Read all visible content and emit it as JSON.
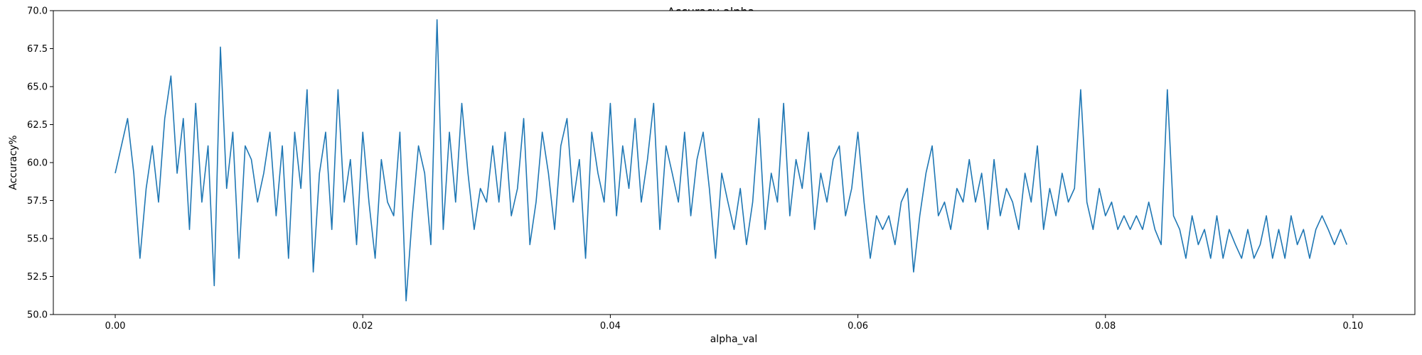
{
  "chart_data": {
    "type": "line",
    "title": "Accuracy-alpha",
    "xlabel": "alpha_val",
    "ylabel": "Accuracy%",
    "xlim": [
      -0.005,
      0.105
    ],
    "ylim": [
      50.0,
      70.0
    ],
    "x_ticks": [
      0.0,
      0.02,
      0.04,
      0.06,
      0.08,
      0.1
    ],
    "x_tick_labels": [
      "0.00",
      "0.02",
      "0.04",
      "0.06",
      "0.08",
      "0.10"
    ],
    "y_ticks": [
      50.0,
      52.5,
      55.0,
      57.5,
      60.0,
      62.5,
      65.0,
      67.5,
      70.0
    ],
    "y_tick_labels": [
      "50.0",
      "52.5",
      "55.0",
      "57.5",
      "60.0",
      "62.5",
      "65.0",
      "67.5",
      "70.0"
    ],
    "grid": false,
    "line_color": "#1f77b4",
    "x": [
      0.0,
      0.0005,
      0.001,
      0.0015,
      0.002,
      0.0025,
      0.003,
      0.0035,
      0.004,
      0.0045,
      0.005,
      0.0055,
      0.006,
      0.0065,
      0.007,
      0.0075,
      0.008,
      0.0085,
      0.009,
      0.0095,
      0.01,
      0.0105,
      0.011,
      0.0115,
      0.012,
      0.0125,
      0.013,
      0.0135,
      0.014,
      0.0145,
      0.015,
      0.0155,
      0.016,
      0.0165,
      0.017,
      0.0175,
      0.018,
      0.0185,
      0.019,
      0.0195,
      0.02,
      0.0205,
      0.021,
      0.0215,
      0.022,
      0.0225,
      0.023,
      0.0235,
      0.024,
      0.0245,
      0.025,
      0.0255,
      0.026,
      0.0265,
      0.027,
      0.0275,
      0.028,
      0.0285,
      0.029,
      0.0295,
      0.03,
      0.0305,
      0.031,
      0.0315,
      0.032,
      0.0325,
      0.033,
      0.0335,
      0.034,
      0.0345,
      0.035,
      0.0355,
      0.036,
      0.0365,
      0.037,
      0.0375,
      0.038,
      0.0385,
      0.039,
      0.0395,
      0.04,
      0.0405,
      0.041,
      0.0415,
      0.042,
      0.0425,
      0.043,
      0.0435,
      0.044,
      0.0445,
      0.045,
      0.0455,
      0.046,
      0.0465,
      0.047,
      0.0475,
      0.048,
      0.0485,
      0.049,
      0.0495,
      0.05,
      0.0505,
      0.051,
      0.0515,
      0.052,
      0.0525,
      0.053,
      0.0535,
      0.054,
      0.0545,
      0.055,
      0.0555,
      0.056,
      0.0565,
      0.057,
      0.0575,
      0.058,
      0.0585,
      0.059,
      0.0595,
      0.06,
      0.0605,
      0.061,
      0.0615,
      0.062,
      0.0625,
      0.063,
      0.0635,
      0.064,
      0.0645,
      0.065,
      0.0655,
      0.066,
      0.0665,
      0.067,
      0.0675,
      0.068,
      0.0685,
      0.069,
      0.0695,
      0.07,
      0.0705,
      0.071,
      0.0715,
      0.072,
      0.0725,
      0.073,
      0.0735,
      0.074,
      0.0745,
      0.075,
      0.0755,
      0.076,
      0.0765,
      0.077,
      0.0775,
      0.078,
      0.0785,
      0.079,
      0.0795,
      0.08,
      0.0805,
      0.081,
      0.0815,
      0.082,
      0.0825,
      0.083,
      0.0835,
      0.084,
      0.0845,
      0.085,
      0.0855,
      0.086,
      0.0865,
      0.087,
      0.0875,
      0.088,
      0.0885,
      0.089,
      0.0895,
      0.09,
      0.0905,
      0.091,
      0.0915,
      0.092,
      0.0925,
      0.093,
      0.0935,
      0.094,
      0.0945,
      0.095,
      0.0955,
      0.096,
      0.0965,
      0.097,
      0.0975,
      0.098,
      0.0985,
      0.099,
      0.0995
    ],
    "y": [
      59.3,
      61.1,
      62.9,
      59.3,
      53.7,
      58.3,
      61.1,
      57.4,
      62.9,
      65.7,
      59.3,
      62.9,
      55.6,
      63.9,
      57.4,
      61.1,
      51.9,
      67.6,
      58.3,
      62.0,
      53.7,
      61.1,
      60.2,
      57.4,
      59.3,
      62.0,
      56.5,
      61.1,
      53.7,
      62.0,
      58.3,
      64.8,
      52.8,
      59.3,
      62.0,
      55.6,
      64.8,
      57.4,
      60.2,
      54.6,
      62.0,
      57.4,
      53.7,
      60.2,
      57.4,
      56.5,
      62.0,
      50.9,
      56.5,
      61.1,
      59.3,
      54.6,
      69.4,
      55.6,
      62.0,
      57.4,
      63.9,
      59.3,
      55.6,
      58.3,
      57.4,
      61.1,
      57.4,
      62.0,
      56.5,
      58.3,
      62.9,
      54.6,
      57.4,
      62.0,
      59.3,
      55.6,
      61.1,
      62.9,
      57.4,
      60.2,
      53.7,
      62.0,
      59.3,
      57.4,
      63.9,
      56.5,
      61.1,
      58.3,
      62.9,
      57.4,
      60.2,
      63.9,
      55.6,
      61.1,
      59.3,
      57.4,
      62.0,
      56.5,
      60.2,
      62.0,
      58.3,
      53.7,
      59.3,
      57.4,
      55.6,
      58.3,
      54.6,
      57.4,
      62.9,
      55.6,
      59.3,
      57.4,
      63.9,
      56.5,
      60.2,
      58.3,
      62.0,
      55.6,
      59.3,
      57.4,
      60.2,
      61.1,
      56.5,
      58.3,
      62.0,
      57.4,
      53.7,
      56.5,
      55.6,
      56.5,
      54.6,
      57.4,
      58.3,
      52.8,
      56.5,
      59.3,
      61.1,
      56.5,
      57.4,
      55.6,
      58.3,
      57.4,
      60.2,
      57.4,
      59.3,
      55.6,
      60.2,
      56.5,
      58.3,
      57.4,
      55.6,
      59.3,
      57.4,
      61.1,
      55.6,
      58.3,
      56.5,
      59.3,
      57.4,
      58.3,
      64.8,
      57.4,
      55.6,
      58.3,
      56.5,
      57.4,
      55.6,
      56.5,
      55.6,
      56.5,
      55.6,
      57.4,
      55.6,
      54.6,
      64.8,
      56.5,
      55.6,
      53.7,
      56.5,
      54.6,
      55.6,
      53.7,
      56.5,
      53.7,
      55.6,
      54.6,
      53.7,
      55.6,
      53.7,
      54.6,
      56.5,
      53.7,
      55.6,
      53.7,
      56.5,
      54.6,
      55.6,
      53.7,
      55.6,
      56.5,
      55.6,
      54.6,
      55.6,
      54.6
    ]
  }
}
